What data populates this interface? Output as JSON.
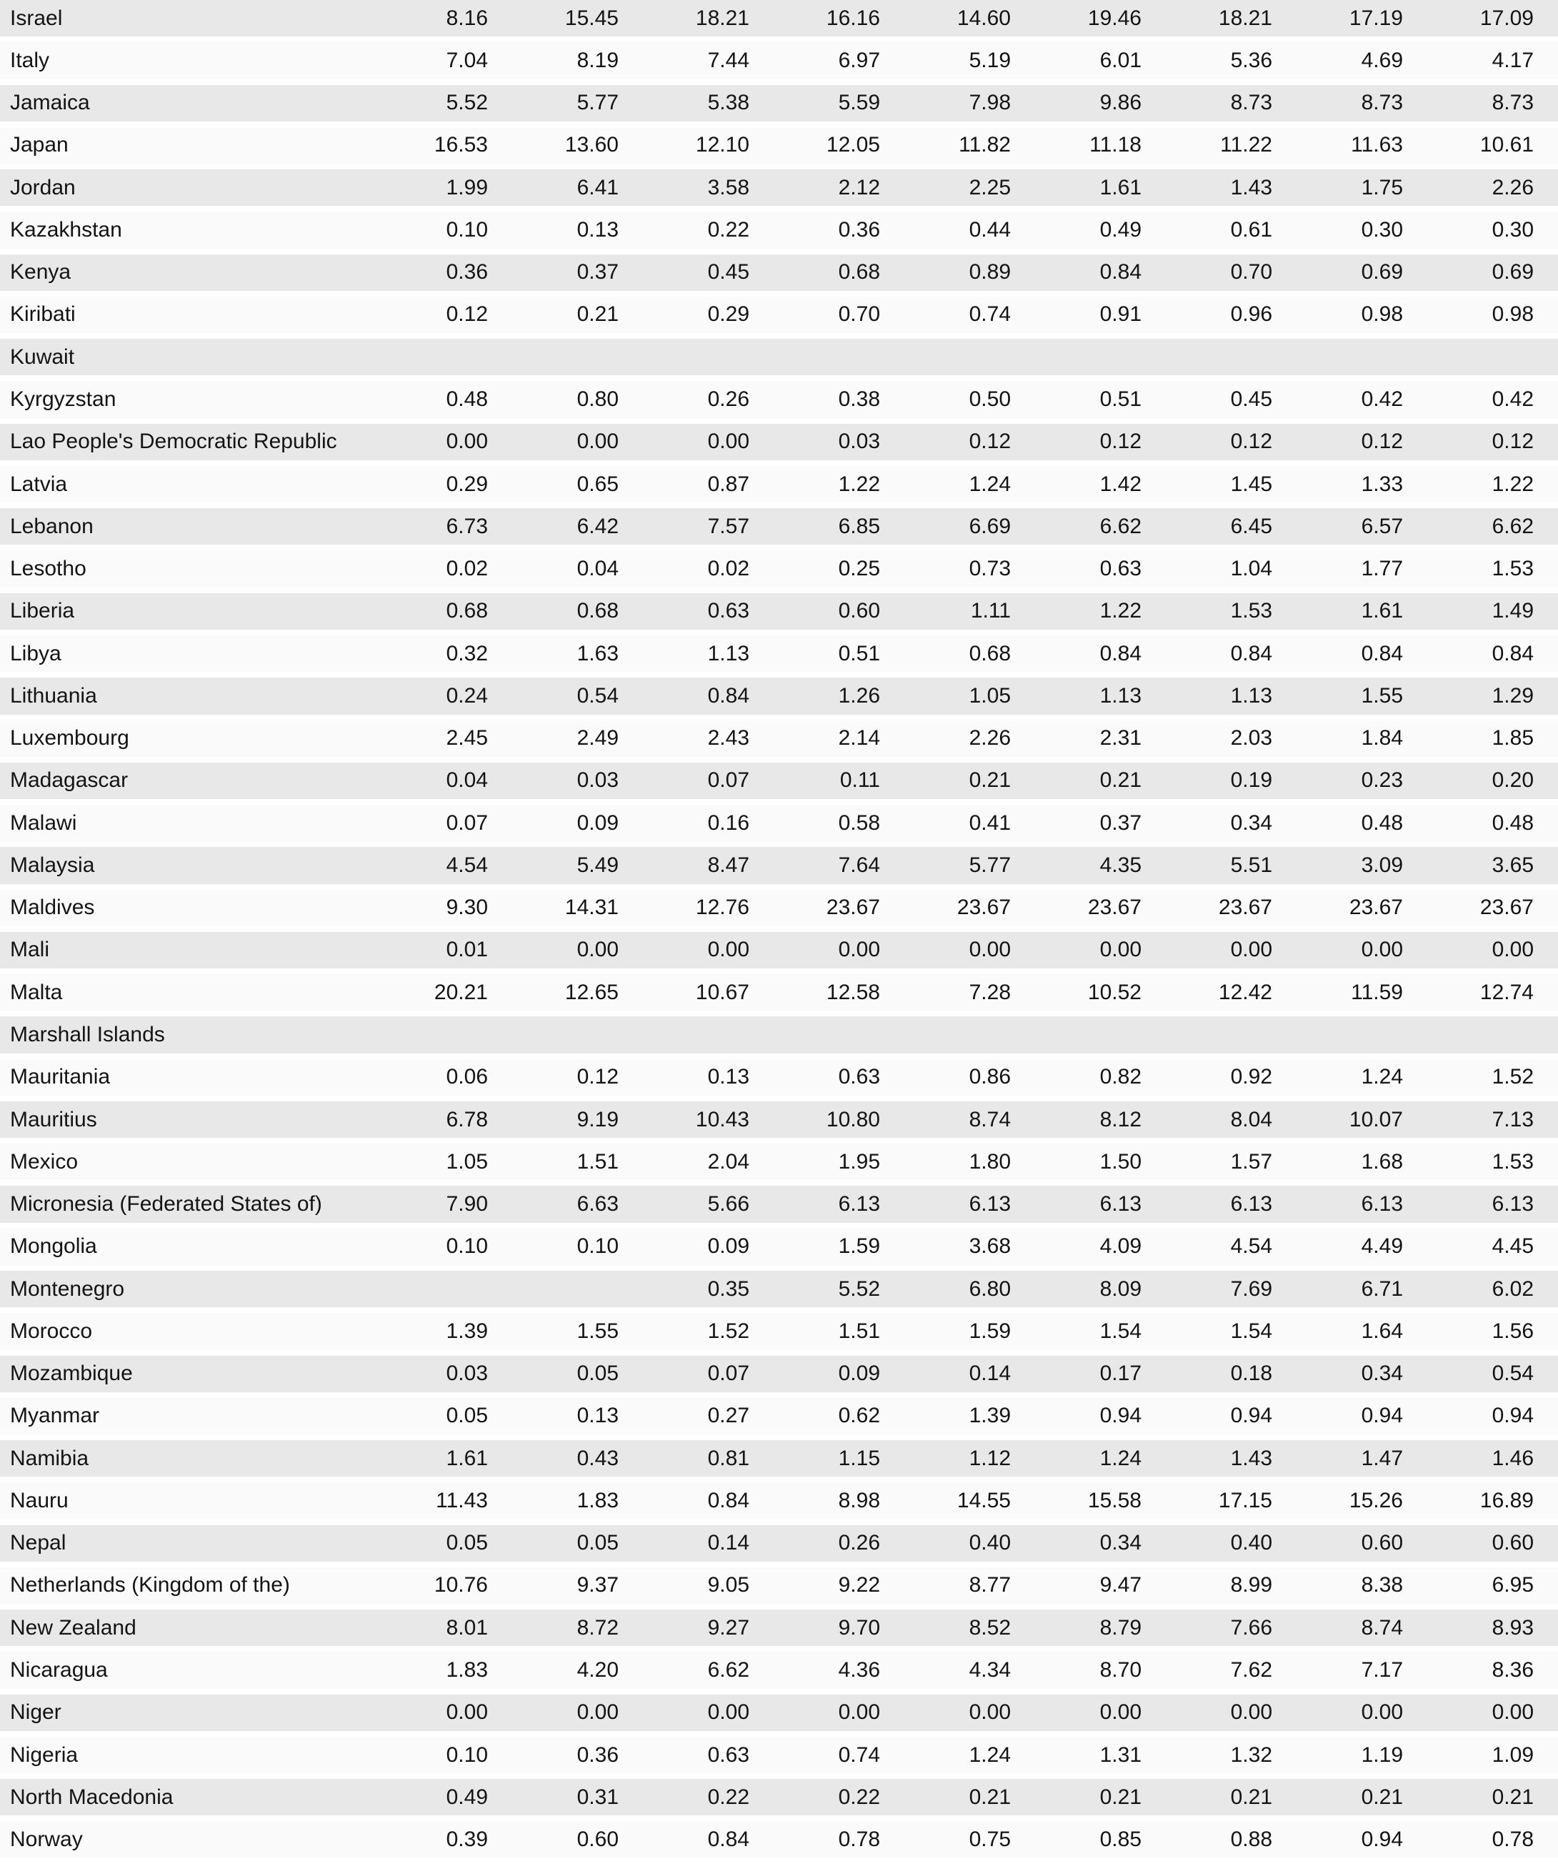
{
  "colors": {
    "row_shaded_bg": "#e8e8e8",
    "row_plain_bg": "#fafafa",
    "separator": "#ffffff",
    "text": "#141414"
  },
  "table": {
    "numeric_columns": 9,
    "rows": [
      {
        "name": "Israel",
        "values": [
          "8.16",
          "15.45",
          "18.21",
          "16.16",
          "14.60",
          "19.46",
          "18.21",
          "17.19",
          "17.09"
        ]
      },
      {
        "name": "Italy",
        "values": [
          "7.04",
          "8.19",
          "7.44",
          "6.97",
          "5.19",
          "6.01",
          "5.36",
          "4.69",
          "4.17"
        ]
      },
      {
        "name": "Jamaica",
        "values": [
          "5.52",
          "5.77",
          "5.38",
          "5.59",
          "7.98",
          "9.86",
          "8.73",
          "8.73",
          "8.73"
        ]
      },
      {
        "name": "Japan",
        "values": [
          "16.53",
          "13.60",
          "12.10",
          "12.05",
          "11.82",
          "11.18",
          "11.22",
          "11.63",
          "10.61"
        ]
      },
      {
        "name": "Jordan",
        "values": [
          "1.99",
          "6.41",
          "3.58",
          "2.12",
          "2.25",
          "1.61",
          "1.43",
          "1.75",
          "2.26"
        ]
      },
      {
        "name": "Kazakhstan",
        "values": [
          "0.10",
          "0.13",
          "0.22",
          "0.36",
          "0.44",
          "0.49",
          "0.61",
          "0.30",
          "0.30"
        ]
      },
      {
        "name": "Kenya",
        "values": [
          "0.36",
          "0.37",
          "0.45",
          "0.68",
          "0.89",
          "0.84",
          "0.70",
          "0.69",
          "0.69"
        ]
      },
      {
        "name": "Kiribati",
        "values": [
          "0.12",
          "0.21",
          "0.29",
          "0.70",
          "0.74",
          "0.91",
          "0.96",
          "0.98",
          "0.98"
        ]
      },
      {
        "name": "Kuwait",
        "values": [
          "",
          "",
          "",
          "",
          "",
          "",
          "",
          "",
          ""
        ]
      },
      {
        "name": "Kyrgyzstan",
        "values": [
          "0.48",
          "0.80",
          "0.26",
          "0.38",
          "0.50",
          "0.51",
          "0.45",
          "0.42",
          "0.42"
        ]
      },
      {
        "name": "Lao People's Democratic Republic",
        "values": [
          "0.00",
          "0.00",
          "0.00",
          "0.03",
          "0.12",
          "0.12",
          "0.12",
          "0.12",
          "0.12"
        ]
      },
      {
        "name": "Latvia",
        "values": [
          "0.29",
          "0.65",
          "0.87",
          "1.22",
          "1.24",
          "1.42",
          "1.45",
          "1.33",
          "1.22"
        ]
      },
      {
        "name": "Lebanon",
        "values": [
          "6.73",
          "6.42",
          "7.57",
          "6.85",
          "6.69",
          "6.62",
          "6.45",
          "6.57",
          "6.62"
        ]
      },
      {
        "name": "Lesotho",
        "values": [
          "0.02",
          "0.04",
          "0.02",
          "0.25",
          "0.73",
          "0.63",
          "1.04",
          "1.77",
          "1.53"
        ]
      },
      {
        "name": "Liberia",
        "values": [
          "0.68",
          "0.68",
          "0.63",
          "0.60",
          "1.11",
          "1.22",
          "1.53",
          "1.61",
          "1.49"
        ]
      },
      {
        "name": "Libya",
        "values": [
          "0.32",
          "1.63",
          "1.13",
          "0.51",
          "0.68",
          "0.84",
          "0.84",
          "0.84",
          "0.84"
        ]
      },
      {
        "name": "Lithuania",
        "values": [
          "0.24",
          "0.54",
          "0.84",
          "1.26",
          "1.05",
          "1.13",
          "1.13",
          "1.55",
          "1.29"
        ]
      },
      {
        "name": "Luxembourg",
        "values": [
          "2.45",
          "2.49",
          "2.43",
          "2.14",
          "2.26",
          "2.31",
          "2.03",
          "1.84",
          "1.85"
        ]
      },
      {
        "name": "Madagascar",
        "values": [
          "0.04",
          "0.03",
          "0.07",
          "0.11",
          "0.21",
          "0.21",
          "0.19",
          "0.23",
          "0.20"
        ]
      },
      {
        "name": "Malawi",
        "values": [
          "0.07",
          "0.09",
          "0.16",
          "0.58",
          "0.41",
          "0.37",
          "0.34",
          "0.48",
          "0.48"
        ]
      },
      {
        "name": "Malaysia",
        "values": [
          "4.54",
          "5.49",
          "8.47",
          "7.64",
          "5.77",
          "4.35",
          "5.51",
          "3.09",
          "3.65"
        ]
      },
      {
        "name": "Maldives",
        "values": [
          "9.30",
          "14.31",
          "12.76",
          "23.67",
          "23.67",
          "23.67",
          "23.67",
          "23.67",
          "23.67"
        ]
      },
      {
        "name": "Mali",
        "values": [
          "0.01",
          "0.00",
          "0.00",
          "0.00",
          "0.00",
          "0.00",
          "0.00",
          "0.00",
          "0.00"
        ]
      },
      {
        "name": "Malta",
        "values": [
          "20.21",
          "12.65",
          "10.67",
          "12.58",
          "7.28",
          "10.52",
          "12.42",
          "11.59",
          "12.74"
        ]
      },
      {
        "name": "Marshall Islands",
        "values": [
          "",
          "",
          "",
          "",
          "",
          "",
          "",
          "",
          ""
        ]
      },
      {
        "name": "Mauritania",
        "values": [
          "0.06",
          "0.12",
          "0.13",
          "0.63",
          "0.86",
          "0.82",
          "0.92",
          "1.24",
          "1.52"
        ]
      },
      {
        "name": "Mauritius",
        "values": [
          "6.78",
          "9.19",
          "10.43",
          "10.80",
          "8.74",
          "8.12",
          "8.04",
          "10.07",
          "7.13"
        ]
      },
      {
        "name": "Mexico",
        "values": [
          "1.05",
          "1.51",
          "2.04",
          "1.95",
          "1.80",
          "1.50",
          "1.57",
          "1.68",
          "1.53"
        ]
      },
      {
        "name": "Micronesia (Federated States of)",
        "values": [
          "7.90",
          "6.63",
          "5.66",
          "6.13",
          "6.13",
          "6.13",
          "6.13",
          "6.13",
          "6.13"
        ]
      },
      {
        "name": "Mongolia",
        "values": [
          "0.10",
          "0.10",
          "0.09",
          "1.59",
          "3.68",
          "4.09",
          "4.54",
          "4.49",
          "4.45"
        ]
      },
      {
        "name": "Montenegro",
        "values": [
          "",
          "",
          "0.35",
          "5.52",
          "6.80",
          "8.09",
          "7.69",
          "6.71",
          "6.02"
        ]
      },
      {
        "name": "Morocco",
        "values": [
          "1.39",
          "1.55",
          "1.52",
          "1.51",
          "1.59",
          "1.54",
          "1.54",
          "1.64",
          "1.56"
        ]
      },
      {
        "name": "Mozambique",
        "values": [
          "0.03",
          "0.05",
          "0.07",
          "0.09",
          "0.14",
          "0.17",
          "0.18",
          "0.34",
          "0.54"
        ]
      },
      {
        "name": "Myanmar",
        "values": [
          "0.05",
          "0.13",
          "0.27",
          "0.62",
          "1.39",
          "0.94",
          "0.94",
          "0.94",
          "0.94"
        ]
      },
      {
        "name": "Namibia",
        "values": [
          "1.61",
          "0.43",
          "0.81",
          "1.15",
          "1.12",
          "1.24",
          "1.43",
          "1.47",
          "1.46"
        ]
      },
      {
        "name": "Nauru",
        "values": [
          "11.43",
          "1.83",
          "0.84",
          "8.98",
          "14.55",
          "15.58",
          "17.15",
          "15.26",
          "16.89"
        ]
      },
      {
        "name": "Nepal",
        "values": [
          "0.05",
          "0.05",
          "0.14",
          "0.26",
          "0.40",
          "0.34",
          "0.40",
          "0.60",
          "0.60"
        ]
      },
      {
        "name": "Netherlands (Kingdom of the)",
        "values": [
          "10.76",
          "9.37",
          "9.05",
          "9.22",
          "8.77",
          "9.47",
          "8.99",
          "8.38",
          "6.95"
        ]
      },
      {
        "name": "New Zealand",
        "values": [
          "8.01",
          "8.72",
          "9.27",
          "9.70",
          "8.52",
          "8.79",
          "7.66",
          "8.74",
          "8.93"
        ]
      },
      {
        "name": "Nicaragua",
        "values": [
          "1.83",
          "4.20",
          "6.62",
          "4.36",
          "4.34",
          "8.70",
          "7.62",
          "7.17",
          "8.36"
        ]
      },
      {
        "name": "Niger",
        "values": [
          "0.00",
          "0.00",
          "0.00",
          "0.00",
          "0.00",
          "0.00",
          "0.00",
          "0.00",
          "0.00"
        ]
      },
      {
        "name": "Nigeria",
        "values": [
          "0.10",
          "0.36",
          "0.63",
          "0.74",
          "1.24",
          "1.31",
          "1.32",
          "1.19",
          "1.09"
        ]
      },
      {
        "name": "North Macedonia",
        "values": [
          "0.49",
          "0.31",
          "0.22",
          "0.22",
          "0.21",
          "0.21",
          "0.21",
          "0.21",
          "0.21"
        ]
      },
      {
        "name": "Norway",
        "values": [
          "0.39",
          "0.60",
          "0.84",
          "0.78",
          "0.75",
          "0.85",
          "0.88",
          "0.94",
          "0.78"
        ]
      }
    ]
  }
}
